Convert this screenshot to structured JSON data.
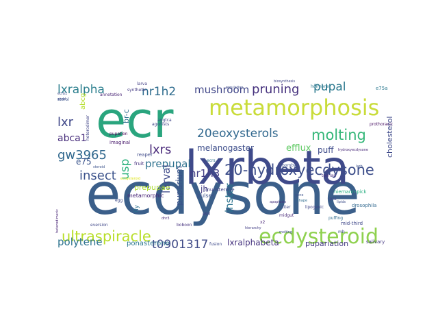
{
  "words": [
    {
      "text": "ecdysone",
      "color": "#3b5f8a"
    },
    {
      "text": "ecr",
      "color": "#2aa57e"
    },
    {
      "text": "lxrbeta",
      "color": "#3f4a8a"
    },
    {
      "text": "metamorphosis",
      "color": "#c9dc3a"
    },
    {
      "text": "ecdysteroid",
      "color": "#8fd14f"
    },
    {
      "text": "20-hydroxyecdysone",
      "color": "#3d4e8a"
    },
    {
      "text": "ultraspiracle",
      "color": "#b8de29"
    },
    {
      "text": "t0901317",
      "color": "#404b88"
    },
    {
      "text": "20eoxysterols",
      "color": "#31688e"
    },
    {
      "text": "molting",
      "color": "#35b779"
    },
    {
      "text": "insect",
      "color": "#3b528b"
    },
    {
      "text": "gw3965",
      "color": "#31688e"
    },
    {
      "text": "lxralpha",
      "color": "#2c7f8e"
    },
    {
      "text": "nr1h2",
      "color": "#2f6c8e"
    },
    {
      "text": "mushroom",
      "color": "#404688"
    },
    {
      "text": "pruning",
      "color": "#46327e"
    },
    {
      "text": "pupal",
      "color": "#2a788e"
    },
    {
      "text": "lxr",
      "color": "#3f4788"
    },
    {
      "text": "lxrs",
      "color": "#4a2a7a"
    },
    {
      "text": "prepupal",
      "color": "#2d718e"
    },
    {
      "text": "nr1h3",
      "color": "#433e85"
    },
    {
      "text": "instar",
      "color": "#2c738e"
    },
    {
      "text": "polytene",
      "color": "#2c728e"
    },
    {
      "text": "usp",
      "color": "#2db27d"
    },
    {
      "text": "larval",
      "color": "#3e4a89"
    },
    {
      "text": "abca1",
      "color": "#472d7b"
    },
    {
      "text": "e75",
      "color": "#3a548c"
    },
    {
      "text": "melanogaster",
      "color": "#3d4d8a"
    },
    {
      "text": "efflux",
      "color": "#5ec962"
    },
    {
      "text": "puff",
      "color": "#3e4c8a"
    },
    {
      "text": "prepupae",
      "color": "#addc30"
    },
    {
      "text": "lxralphabeta",
      "color": "#46337f"
    },
    {
      "text": "pupariation",
      "color": "#443983"
    },
    {
      "text": "puparium",
      "color": "#3b528b"
    },
    {
      "text": "ponasterone",
      "color": "#2a778e"
    },
    {
      "text": "cholesterol",
      "color": "#3e4989"
    },
    {
      "text": "br-c",
      "color": "#2d708e"
    },
    {
      "text": "abcg",
      "color": "#b5de2b"
    },
    {
      "text": "jh",
      "color": "#433d84"
    },
    {
      "text": "metamorphic",
      "color": "#482576"
    },
    {
      "text": "drosophila",
      "color": "#31688e"
    },
    {
      "text": "lipogenic",
      "color": "#404588"
    },
    {
      "text": "niemann-pick",
      "color": "#27ad81"
    },
    {
      "text": "mid-third",
      "color": "#3f4889"
    },
    {
      "text": "salivary",
      "color": "#453882"
    },
    {
      "text": "pulses",
      "color": "#3b518b"
    },
    {
      "text": "fruit",
      "color": "#46307e"
    },
    {
      "text": "reaper",
      "color": "#3e4a89"
    },
    {
      "text": "imaginal",
      "color": "#481a6c"
    },
    {
      "text": "fly",
      "color": "#2e6f8e"
    },
    {
      "text": "egg",
      "color": "#3e4a89"
    },
    {
      "text": "synthetic",
      "color": "#443a83"
    },
    {
      "text": "larva",
      "color": "#433e85"
    },
    {
      "text": "annotation",
      "color": "#482475"
    },
    {
      "text": "sterol",
      "color": "#3b518b"
    },
    {
      "text": "hormone",
      "color": "#2a788e"
    },
    {
      "text": "muristerone",
      "color": "#414487"
    },
    {
      "text": "puffing",
      "color": "#2f6b8e"
    },
    {
      "text": "titer",
      "color": "#3e4989"
    },
    {
      "text": "midgut",
      "color": "#482878"
    },
    {
      "text": "x2",
      "color": "#482576"
    },
    {
      "text": "bombyx",
      "color": "#3b528b"
    },
    {
      "text": "e75a",
      "color": "#2a788e"
    },
    {
      "text": "prothoracic",
      "color": "#471063"
    },
    {
      "text": "boboon",
      "color": "#46327e"
    },
    {
      "text": "ecrb1",
      "color": "#3e4c8a"
    },
    {
      "text": "agonists",
      "color": "#404588"
    },
    {
      "text": "pupation",
      "color": "#440154"
    },
    {
      "text": "eversion",
      "color": "#3f4788"
    },
    {
      "text": "steroid",
      "color": "#3b528b"
    },
    {
      "text": "heterodimer",
      "color": "#414487"
    },
    {
      "text": "hydroxyecdysone",
      "color": "#482878"
    },
    {
      "text": "ecrbl",
      "color": "#3e4a89"
    },
    {
      "text": "ecrs",
      "color": "#2c728e"
    },
    {
      "text": "e93",
      "color": "#433d84"
    },
    {
      "text": "lipids",
      "color": "#3d4e8a"
    },
    {
      "text": "gria",
      "color": "#414487"
    },
    {
      "text": "tolman",
      "color": "#46307e"
    },
    {
      "text": "fusion",
      "color": "#3e4a89"
    },
    {
      "text": "larb",
      "color": "#3b528b"
    },
    {
      "text": "heterodimeric",
      "color": "#482576"
    },
    {
      "text": "biosynthesis",
      "color": "#404688"
    },
    {
      "text": "regulation",
      "color": "#3e4c8a"
    },
    {
      "text": "hierarchy",
      "color": "#433e85"
    },
    {
      "text": "gene",
      "color": "#3b528b"
    },
    {
      "text": "shape",
      "color": "#2f6c8e"
    },
    {
      "text": "molting",
      "color": "#3e4989"
    },
    {
      "text": "apoptosis",
      "color": "#46327e"
    },
    {
      "text": "dhr3",
      "color": "#482878"
    },
    {
      "text": "mb",
      "color": "#3e4a89"
    },
    {
      "text": "ecdysteroid",
      "color": "#dde318"
    },
    {
      "text": "aggtca",
      "color": "#414487"
    }
  ]
}
